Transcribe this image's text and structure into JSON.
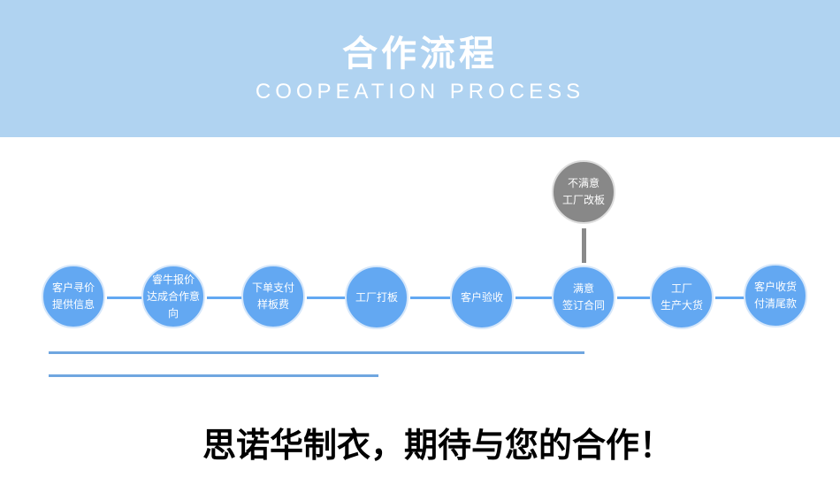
{
  "header": {
    "title": "合作流程",
    "subtitle": "COOPEATION PROCESS"
  },
  "steps": [
    {
      "l1": "客户寻价",
      "l2": "提供信息"
    },
    {
      "l1": "睿牛报价",
      "l2": "达成合作意向"
    },
    {
      "l1": "下单支付",
      "l2": "样板费"
    },
    {
      "l1": "工厂打板",
      "l2": ""
    },
    {
      "l1": "客户验收",
      "l2": ""
    },
    {
      "l1": "满意",
      "l2": "签订合同"
    },
    {
      "l1": "工厂",
      "l2": "生产大货"
    },
    {
      "l1": "客户收货",
      "l2": "付清尾款"
    }
  ],
  "branch": {
    "l1": "不满意",
    "l2": "工厂改板"
  },
  "slogan": "思诺华制衣，期待与您的合作！",
  "colors": {
    "header": "#b0d3f1",
    "step": "#63a8f2",
    "branch": "#888888"
  }
}
